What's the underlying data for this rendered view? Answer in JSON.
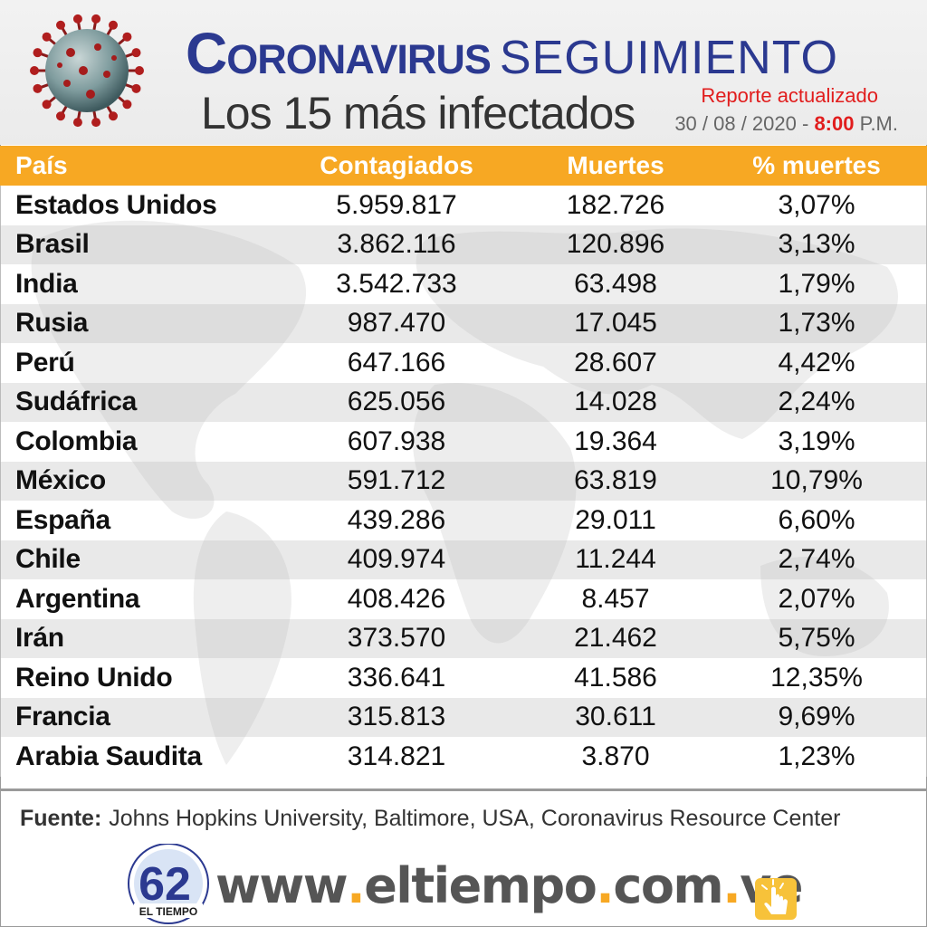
{
  "header": {
    "title_main": "Coronavirus",
    "title_secondary": "SEGUIMIENTO",
    "subtitle": "Los 15 más infectados",
    "report_label": "Reporte actualizado",
    "date": "30 / 08 / 2020 -",
    "time": "8:00",
    "ampm": "P.M."
  },
  "table": {
    "columns": [
      "País",
      "Contagiados",
      "Muertes",
      "% muertes"
    ],
    "rows": [
      {
        "pais": "Estados Unidos",
        "contagiados": "5.959.817",
        "muertes": "182.726",
        "pct": "3,07%"
      },
      {
        "pais": "Brasil",
        "contagiados": "3.862.116",
        "muertes": "120.896",
        "pct": "3,13%"
      },
      {
        "pais": "India",
        "contagiados": "3.542.733",
        "muertes": "63.498",
        "pct": "1,79%"
      },
      {
        "pais": "Rusia",
        "contagiados": "987.470",
        "muertes": "17.045",
        "pct": "1,73%"
      },
      {
        "pais": "Perú",
        "contagiados": "647.166",
        "muertes": "28.607",
        "pct": "4,42%"
      },
      {
        "pais": "Sudáfrica",
        "contagiados": "625.056",
        "muertes": "14.028",
        "pct": "2,24%"
      },
      {
        "pais": "Colombia",
        "contagiados": "607.938",
        "muertes": "19.364",
        "pct": "3,19%"
      },
      {
        "pais": "México",
        "contagiados": "591.712",
        "muertes": "63.819",
        "pct": "10,79%"
      },
      {
        "pais": "España",
        "contagiados": "439.286",
        "muertes": "29.011",
        "pct": "6,60%"
      },
      {
        "pais": "Chile",
        "contagiados": "409.974",
        "muertes": "11.244",
        "pct": "2,74%"
      },
      {
        "pais": "Argentina",
        "contagiados": "408.426",
        "muertes": "8.457",
        "pct": "2,07%"
      },
      {
        "pais": "Irán",
        "contagiados": "373.570",
        "muertes": "21.462",
        "pct": "5,75%"
      },
      {
        "pais": "Reino Unido",
        "contagiados": "336.641",
        "muertes": "41.586",
        "pct": "12,35%"
      },
      {
        "pais": "Francia",
        "contagiados": "315.813",
        "muertes": "30.611",
        "pct": "9,69%"
      },
      {
        "pais": "Arabia Saudita",
        "contagiados": "314.821",
        "muertes": "3.870",
        "pct": "1,23%"
      }
    ]
  },
  "source": {
    "label": "Fuente:",
    "text": "Johns Hopkins University, Baltimore, USA, Coronavirus Resource Center"
  },
  "footer": {
    "logo_text": "EL TIEMPO",
    "logo_number": "62",
    "url_parts": [
      "www",
      ".",
      "eltiempo",
      ".",
      "com",
      ".",
      "ve"
    ]
  },
  "colors": {
    "title_blue": "#2b3990",
    "accent_orange": "#f7a823",
    "alert_red": "#e11d1d"
  }
}
